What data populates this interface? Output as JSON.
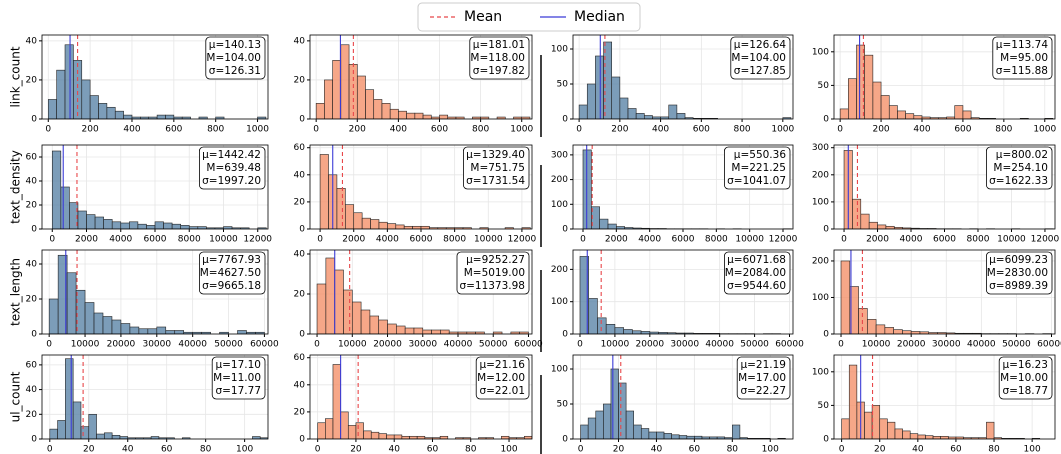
{
  "legend": [
    {
      "name": "Mean",
      "color": "#e8474a",
      "style": "dashed"
    },
    {
      "name": "Median",
      "color": "#3b3bd6",
      "style": "solid"
    }
  ],
  "chart_data": [
    {
      "type": "histogram",
      "ylabel": "link_count",
      "color": "#5b84a8",
      "grid": true,
      "xlim": [
        -30,
        1050
      ],
      "xticks": [
        0,
        200,
        400,
        600,
        800,
        1000
      ],
      "ylim": [
        0,
        43
      ],
      "yticks": [
        0,
        20,
        40
      ],
      "bins": [
        0,
        40,
        80,
        120,
        160,
        200,
        240,
        280,
        320,
        360,
        400,
        440,
        480,
        520,
        560,
        600,
        640,
        680,
        720,
        760,
        800,
        840,
        880,
        920,
        960,
        1000,
        1040
      ],
      "counts": [
        10,
        25,
        38,
        30,
        20,
        12,
        8,
        6,
        4,
        2,
        1,
        1,
        1,
        2,
        2,
        1,
        1,
        0,
        1,
        0,
        1,
        0,
        0,
        0,
        0,
        1
      ],
      "mean": 140.13,
      "median": 104,
      "stats": [
        "μ=140.13",
        "M=104.00",
        "σ=126.31"
      ]
    },
    {
      "type": "histogram",
      "color": "#f4916a",
      "grid": true,
      "xlim": [
        -30,
        1050
      ],
      "xticks": [
        0,
        200,
        400,
        600,
        800,
        1000
      ],
      "ylim": [
        0,
        43
      ],
      "yticks": [
        0,
        20,
        40
      ],
      "bins": [
        0,
        40,
        80,
        120,
        160,
        200,
        240,
        280,
        320,
        360,
        400,
        440,
        480,
        520,
        560,
        600,
        640,
        680,
        720,
        760,
        800,
        840,
        880,
        920,
        960,
        1000,
        1040
      ],
      "counts": [
        8,
        20,
        30,
        38,
        28,
        22,
        15,
        10,
        8,
        5,
        4,
        3,
        3,
        2,
        1,
        2,
        1,
        1,
        0,
        1,
        1,
        0,
        1,
        0,
        1,
        1
      ],
      "mean": 181.01,
      "median": 118,
      "stats": [
        "μ=181.01",
        "M=118.00",
        "σ=197.82"
      ]
    },
    {
      "type": "histogram",
      "color": "#5b84a8",
      "grid": true,
      "xlim": [
        -30,
        1050
      ],
      "xticks": [
        0,
        200,
        400,
        600,
        800,
        1000
      ],
      "ylim": [
        0,
        120
      ],
      "yticks": [
        0,
        50,
        100
      ],
      "bins": [
        0,
        40,
        80,
        120,
        160,
        200,
        240,
        280,
        320,
        360,
        400,
        440,
        480,
        520,
        560,
        600,
        640,
        680,
        720,
        760,
        800,
        840,
        880,
        920,
        960,
        1000,
        1040
      ],
      "counts": [
        20,
        50,
        90,
        110,
        60,
        30,
        15,
        8,
        5,
        3,
        3,
        20,
        8,
        2,
        1,
        1,
        1,
        0,
        0,
        0,
        0,
        0,
        0,
        0,
        0,
        2
      ],
      "mean": 126.64,
      "median": 104,
      "stats": [
        "μ=126.64",
        "M=104.00",
        "σ=127.85"
      ]
    },
    {
      "type": "histogram",
      "color": "#f4916a",
      "grid": true,
      "xlim": [
        -30,
        1050
      ],
      "xticks": [
        0,
        200,
        400,
        600,
        800,
        1000
      ],
      "ylim": [
        0,
        125
      ],
      "yticks": [
        0,
        50,
        100
      ],
      "bins": [
        0,
        40,
        80,
        120,
        160,
        200,
        240,
        280,
        320,
        360,
        400,
        440,
        480,
        520,
        560,
        600,
        640,
        680,
        720,
        760,
        800,
        840,
        880,
        920,
        960,
        1000,
        1040
      ],
      "counts": [
        15,
        60,
        110,
        95,
        55,
        35,
        20,
        12,
        8,
        5,
        3,
        2,
        2,
        3,
        20,
        12,
        2,
        1,
        1,
        0,
        0,
        0,
        1,
        0,
        0,
        1
      ],
      "mean": 113.74,
      "median": 95,
      "stats": [
        "μ=113.74",
        "M=95.00",
        "σ=115.88"
      ]
    },
    {
      "type": "histogram",
      "ylabel": "text_density",
      "color": "#5b84a8",
      "grid": true,
      "xlim": [
        -600,
        12600
      ],
      "xticks": [
        0,
        2000,
        4000,
        6000,
        8000,
        10000,
        12000
      ],
      "ylim": [
        0,
        70
      ],
      "yticks": [
        0,
        20,
        40,
        60
      ],
      "bins": [
        0,
        500,
        1000,
        1500,
        2000,
        2500,
        3000,
        3500,
        4000,
        4500,
        5000,
        5500,
        6000,
        6500,
        7000,
        7500,
        8000,
        8500,
        9000,
        9500,
        10000,
        10500,
        11000,
        11500,
        12000,
        12500
      ],
      "counts": [
        65,
        35,
        22,
        15,
        12,
        10,
        8,
        6,
        5,
        6,
        4,
        3,
        6,
        5,
        4,
        3,
        2,
        2,
        1,
        1,
        2,
        1,
        1,
        0,
        1
      ],
      "mean": 1442.42,
      "median": 639.48,
      "stats": [
        "μ=1442.42",
        "M=639.48",
        "σ=1997.20"
      ]
    },
    {
      "type": "histogram",
      "color": "#f4916a",
      "grid": true,
      "xlim": [
        -600,
        12600
      ],
      "xticks": [
        0,
        2000,
        4000,
        6000,
        8000,
        10000,
        12000
      ],
      "ylim": [
        0,
        62
      ],
      "yticks": [
        0,
        20,
        40,
        60
      ],
      "bins": [
        0,
        500,
        1000,
        1500,
        2000,
        2500,
        3000,
        3500,
        4000,
        4500,
        5000,
        5500,
        6000,
        6500,
        7000,
        7500,
        8000,
        8500,
        9000,
        9500,
        10000,
        10500,
        11000,
        11500,
        12000,
        12500
      ],
      "counts": [
        55,
        40,
        30,
        18,
        12,
        8,
        7,
        5,
        4,
        3,
        2,
        2,
        2,
        1,
        1,
        1,
        1,
        1,
        0,
        1,
        0,
        0,
        1,
        0,
        1
      ],
      "mean": 1329.4,
      "median": 751.75,
      "stats": [
        "μ=1329.40",
        "M=751.75",
        "σ=1731.54"
      ]
    },
    {
      "type": "histogram",
      "color": "#5b84a8",
      "grid": true,
      "xlim": [
        -600,
        12600
      ],
      "xticks": [
        0,
        2000,
        4000,
        6000,
        8000,
        10000,
        12000
      ],
      "ylim": [
        0,
        340
      ],
      "yticks": [
        0,
        100,
        200,
        300
      ],
      "bins": [
        0,
        500,
        1000,
        1500,
        2000,
        2500,
        3000,
        3500,
        4000,
        4500,
        5000,
        5500,
        6000,
        6500,
        7000,
        7500,
        8000,
        8500,
        9000,
        9500,
        10000,
        10500,
        11000,
        11500,
        12000,
        12500
      ],
      "counts": [
        320,
        90,
        40,
        20,
        10,
        6,
        4,
        3,
        2,
        2,
        1,
        1,
        1,
        1,
        1,
        0,
        1,
        0,
        1,
        0,
        0,
        0,
        0,
        0,
        1
      ],
      "mean": 550.36,
      "median": 221.25,
      "stats": [
        "μ=550.36",
        "M=221.25",
        "σ=1041.07"
      ]
    },
    {
      "type": "histogram",
      "color": "#f4916a",
      "grid": true,
      "xlim": [
        -600,
        12600
      ],
      "xticks": [
        0,
        2000,
        4000,
        6000,
        8000,
        10000,
        12000
      ],
      "ylim": [
        0,
        310
      ],
      "yticks": [
        0,
        100,
        200,
        300
      ],
      "bins": [
        0,
        500,
        1000,
        1500,
        2000,
        2500,
        3000,
        3500,
        4000,
        4500,
        5000,
        5500,
        6000,
        6500,
        7000,
        7500,
        8000,
        8500,
        9000,
        9500,
        10000,
        10500,
        11000,
        11500,
        12000,
        12500
      ],
      "counts": [
        290,
        110,
        55,
        25,
        15,
        10,
        6,
        4,
        3,
        2,
        2,
        1,
        1,
        1,
        0,
        1,
        0,
        1,
        0,
        0,
        1,
        0,
        0,
        0,
        1
      ],
      "mean": 800.02,
      "median": 254.1,
      "stats": [
        "μ=800.02",
        "M=254.10",
        "σ=1622.33"
      ]
    },
    {
      "type": "histogram",
      "ylabel": "text_length",
      "color": "#5b84a8",
      "grid": true,
      "xlim": [
        -2000,
        61000
      ],
      "xticks": [
        0,
        10000,
        20000,
        30000,
        40000,
        50000,
        60000
      ],
      "ylim": [
        0,
        48
      ],
      "yticks": [
        0,
        20,
        40
      ],
      "bins": [
        0,
        2500,
        5000,
        7500,
        10000,
        12500,
        15000,
        17500,
        20000,
        22500,
        25000,
        27500,
        30000,
        32500,
        35000,
        37500,
        40000,
        42500,
        45000,
        47500,
        50000,
        52500,
        55000,
        57500,
        60000
      ],
      "counts": [
        20,
        45,
        35,
        25,
        18,
        12,
        10,
        8,
        6,
        4,
        3,
        3,
        4,
        2,
        2,
        1,
        1,
        1,
        0,
        1,
        0,
        2,
        1,
        1
      ],
      "mean": 7767.93,
      "median": 4627.5,
      "stats": [
        "μ=7767.93",
        "M=4627.50",
        "σ=9665.18"
      ]
    },
    {
      "type": "histogram",
      "color": "#f4916a",
      "grid": true,
      "xlim": [
        -2000,
        61000
      ],
      "xticks": [
        0,
        10000,
        20000,
        30000,
        40000,
        50000,
        60000
      ],
      "ylim": [
        0,
        42
      ],
      "yticks": [
        0,
        20,
        40
      ],
      "bins": [
        0,
        2500,
        5000,
        7500,
        10000,
        12500,
        15000,
        17500,
        20000,
        22500,
        25000,
        27500,
        30000,
        32500,
        35000,
        37500,
        40000,
        42500,
        45000,
        47500,
        50000,
        52500,
        55000,
        57500,
        60000
      ],
      "counts": [
        25,
        38,
        32,
        22,
        16,
        12,
        9,
        7,
        5,
        4,
        3,
        3,
        2,
        2,
        2,
        1,
        1,
        1,
        1,
        0,
        1,
        0,
        1,
        1
      ],
      "mean": 9252.27,
      "median": 5019,
      "stats": [
        "μ=9252.27",
        "M=5019.00",
        "σ=11373.98"
      ]
    },
    {
      "type": "histogram",
      "color": "#5b84a8",
      "grid": true,
      "xlim": [
        -2000,
        61000
      ],
      "xticks": [
        0,
        10000,
        20000,
        30000,
        40000,
        50000,
        60000
      ],
      "ylim": [
        0,
        260
      ],
      "yticks": [
        0,
        100,
        200
      ],
      "bins": [
        0,
        2500,
        5000,
        7500,
        10000,
        12500,
        15000,
        17500,
        20000,
        22500,
        25000,
        27500,
        30000,
        32500,
        35000,
        37500,
        40000,
        42500,
        45000,
        47500,
        50000,
        52500,
        55000,
        57500,
        60000
      ],
      "counts": [
        240,
        110,
        50,
        30,
        20,
        14,
        10,
        8,
        6,
        5,
        4,
        3,
        3,
        2,
        2,
        2,
        1,
        1,
        1,
        1,
        0,
        1,
        1,
        0
      ],
      "mean": 6071.68,
      "median": 2084,
      "stats": [
        "μ=6071.68",
        "M=2084.00",
        "σ=9544.60"
      ]
    },
    {
      "type": "histogram",
      "color": "#f4916a",
      "grid": true,
      "xlim": [
        -2000,
        61000
      ],
      "xticks": [
        0,
        10000,
        20000,
        30000,
        40000,
        50000,
        60000
      ],
      "ylim": [
        0,
        230
      ],
      "yticks": [
        0,
        100,
        200
      ],
      "bins": [
        0,
        2500,
        5000,
        7500,
        10000,
        12500,
        15000,
        17500,
        20000,
        22500,
        25000,
        27500,
        30000,
        32500,
        35000,
        37500,
        40000,
        42500,
        45000,
        47500,
        50000,
        52500,
        55000,
        57500,
        60000
      ],
      "counts": [
        200,
        130,
        70,
        40,
        25,
        18,
        12,
        9,
        7,
        6,
        4,
        4,
        3,
        2,
        2,
        2,
        1,
        1,
        1,
        1,
        0,
        1,
        0,
        1
      ],
      "mean": 6099.23,
      "median": 2830,
      "stats": [
        "μ=6099.23",
        "M=2830.00",
        "σ=8989.39"
      ]
    },
    {
      "type": "histogram",
      "ylabel": "ul_count",
      "color": "#5b84a8",
      "grid": true,
      "xlim": [
        -4,
        112
      ],
      "xticks": [
        0,
        20,
        40,
        60,
        80,
        100
      ],
      "ylim": [
        0,
        68
      ],
      "yticks": [
        0,
        20,
        40,
        60
      ],
      "bins": [
        0,
        4,
        8,
        12,
        16,
        20,
        24,
        28,
        32,
        36,
        40,
        44,
        48,
        52,
        56,
        60,
        64,
        68,
        72,
        76,
        80,
        84,
        88,
        92,
        96,
        100,
        104,
        108,
        112
      ],
      "counts": [
        8,
        15,
        65,
        30,
        10,
        20,
        4,
        5,
        3,
        2,
        1,
        1,
        1,
        2,
        1,
        1,
        0,
        1,
        0,
        0,
        0,
        0,
        0,
        0,
        0,
        0,
        2,
        1
      ],
      "mean": 17.1,
      "median": 11,
      "stats": [
        "μ=17.10",
        "M=11.00",
        "σ=17.77"
      ]
    },
    {
      "type": "histogram",
      "color": "#f4916a",
      "grid": true,
      "xlim": [
        -4,
        112
      ],
      "xticks": [
        0,
        20,
        40,
        60,
        80,
        100
      ],
      "ylim": [
        0,
        62
      ],
      "yticks": [
        0,
        20,
        40,
        60
      ],
      "bins": [
        0,
        4,
        8,
        12,
        16,
        20,
        24,
        28,
        32,
        36,
        40,
        44,
        48,
        52,
        56,
        60,
        64,
        68,
        72,
        76,
        80,
        84,
        88,
        92,
        96,
        100,
        104,
        108,
        112
      ],
      "counts": [
        12,
        15,
        55,
        20,
        10,
        12,
        6,
        5,
        4,
        3,
        3,
        2,
        2,
        2,
        1,
        1,
        2,
        0,
        1,
        1,
        0,
        1,
        1,
        0,
        2,
        1,
        1,
        2
      ],
      "mean": 21.16,
      "median": 12,
      "stats": [
        "μ=21.16",
        "M=12.00",
        "σ=22.01"
      ]
    },
    {
      "type": "histogram",
      "color": "#5b84a8",
      "grid": true,
      "xlim": [
        -4,
        112
      ],
      "xticks": [
        0,
        20,
        40,
        60,
        80,
        100
      ],
      "ylim": [
        0,
        120
      ],
      "yticks": [
        0,
        50,
        100
      ],
      "bins": [
        0,
        4,
        8,
        12,
        16,
        20,
        24,
        28,
        32,
        36,
        40,
        44,
        48,
        52,
        56,
        60,
        64,
        68,
        72,
        76,
        80,
        84,
        88,
        92,
        96,
        100,
        104,
        108,
        112
      ],
      "counts": [
        20,
        30,
        40,
        50,
        100,
        80,
        40,
        20,
        15,
        10,
        10,
        8,
        6,
        5,
        4,
        4,
        3,
        3,
        3,
        2,
        20,
        2,
        1,
        1,
        1,
        0,
        1,
        0
      ],
      "mean": 21.19,
      "median": 17,
      "stats": [
        "μ=21.19",
        "M=17.00",
        "σ=22.27"
      ]
    },
    {
      "type": "histogram",
      "color": "#f4916a",
      "grid": true,
      "xlim": [
        -4,
        112
      ],
      "xticks": [
        0,
        20,
        40,
        60,
        80,
        100
      ],
      "ylim": [
        0,
        125
      ],
      "yticks": [
        0,
        50,
        100
      ],
      "bins": [
        0,
        4,
        8,
        12,
        16,
        20,
        24,
        28,
        32,
        36,
        40,
        44,
        48,
        52,
        56,
        60,
        64,
        68,
        72,
        76,
        80,
        84,
        88,
        92,
        96,
        100,
        104,
        108,
        112
      ],
      "counts": [
        30,
        110,
        55,
        40,
        50,
        30,
        25,
        15,
        12,
        8,
        6,
        5,
        4,
        4,
        3,
        3,
        2,
        2,
        2,
        25,
        2,
        1,
        1,
        1,
        0,
        1,
        0,
        0
      ],
      "mean": 16.23,
      "median": 10,
      "stats": [
        "μ=16.23",
        "M=10.00",
        "σ=18.77"
      ]
    }
  ]
}
